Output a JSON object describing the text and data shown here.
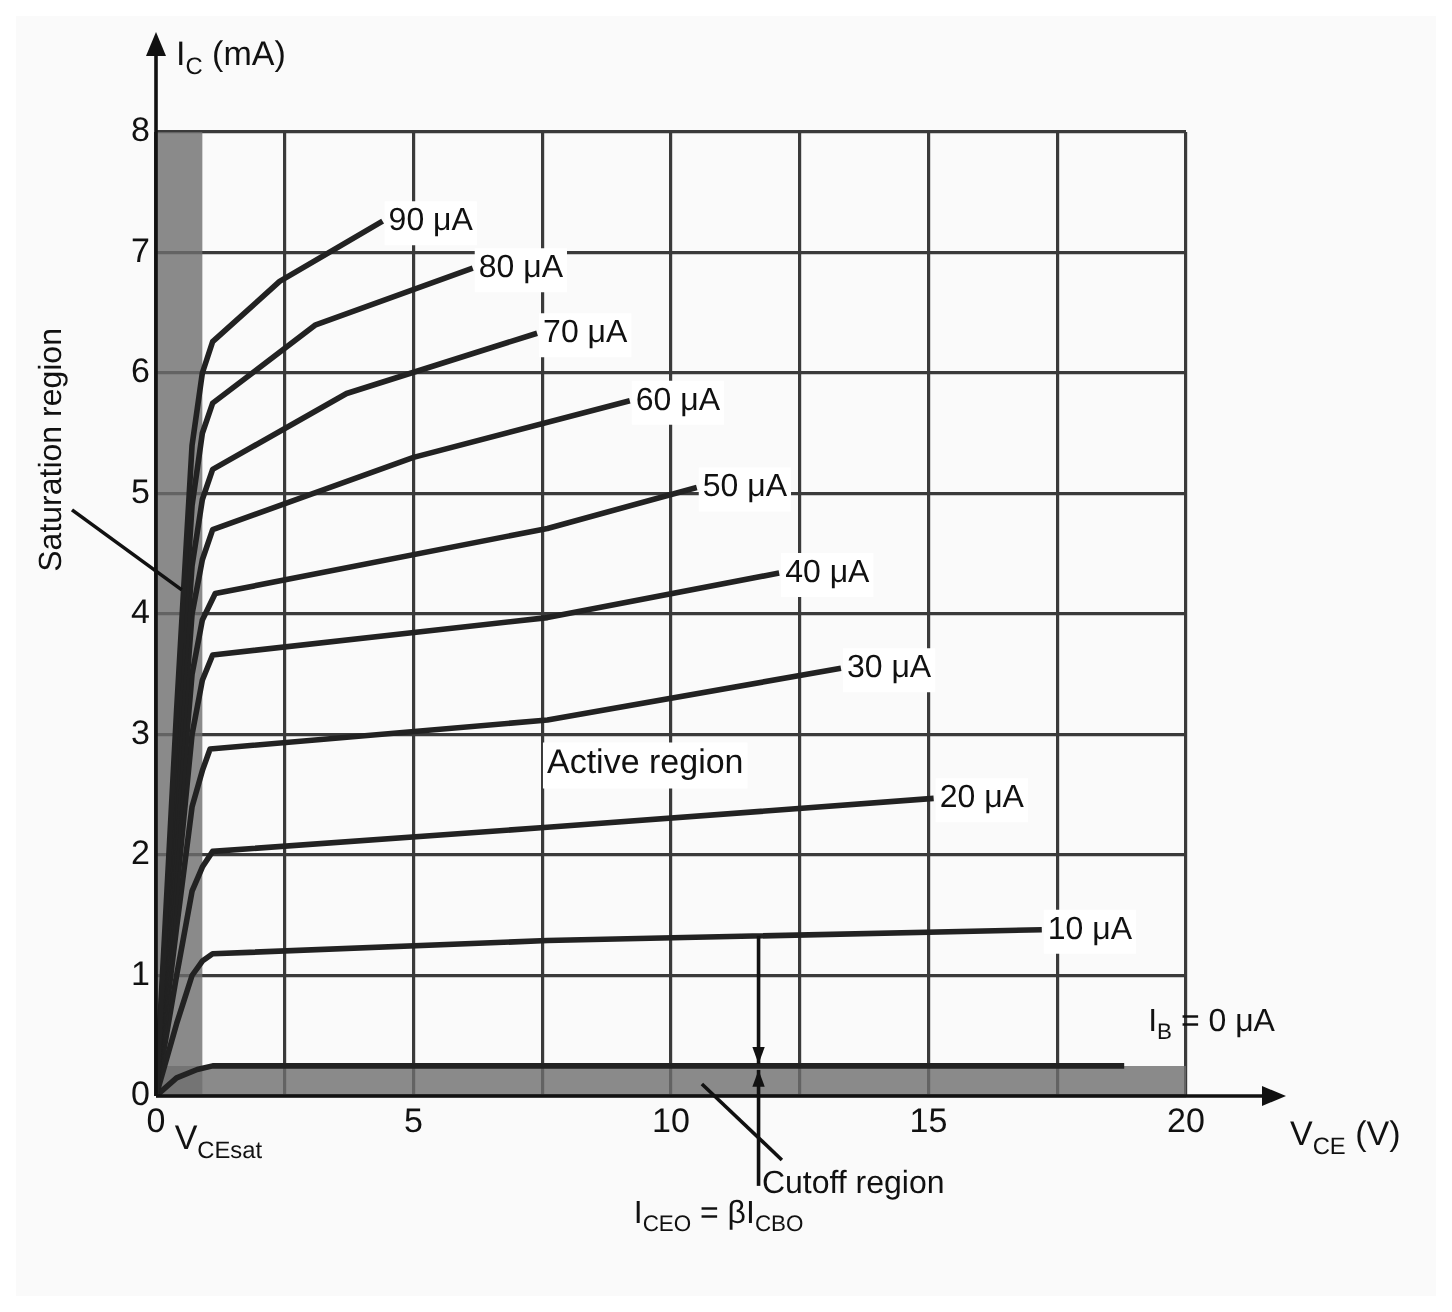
{
  "chart_data": {
    "type": "line",
    "xlabel": "V$_{CE}$ (V)",
    "ylabel": "I$_{C}$ (mA)",
    "xlim": [
      0,
      20
    ],
    "ylim": [
      0,
      8
    ],
    "xticks": [
      0,
      {
        "value": 2.5,
        "label": null
      },
      5,
      {
        "value": 7.5,
        "label": null
      },
      10,
      {
        "value": 12.5,
        "label": null
      },
      15,
      {
        "value": 17.5,
        "label": null
      },
      20
    ],
    "yticks": [
      0,
      1,
      2,
      3,
      4,
      5,
      6,
      7,
      8
    ],
    "grid": true,
    "legend": false,
    "marker": "none",
    "line_style": "solid",
    "bands": [
      {
        "axis": "x",
        "from": 0,
        "to": 0.9,
        "color": "#6e6e6e"
      },
      {
        "axis": "y",
        "from": 0,
        "to": 0.25,
        "color": "#6e6e6e"
      }
    ],
    "annotations": [
      {
        "text": "Saturation region",
        "x": 0.5,
        "y": 4.2
      },
      "Active region",
      "Cutoff region",
      {
        "text": "I$_{CEO}$ = βI$_{CBO}$",
        "x": 11.7,
        "y": 0.25
      },
      {
        "text": "V$_{CEsat}$",
        "x": 0.9,
        "y": 0
      }
    ],
    "series": [
      {
        "name": "90 μA",
        "color": "#222222",
        "x": [
          0,
          0.4,
          0.7,
          0.9,
          1.1,
          2.4,
          4.4
        ],
        "values": [
          0,
          3.2,
          5.4,
          6.0,
          6.26,
          6.76,
          7.26
        ]
      },
      {
        "name": "80 μA",
        "color": "#222222",
        "x": [
          0,
          0.4,
          0.7,
          0.9,
          1.1,
          3.1,
          6.15
        ],
        "values": [
          0,
          2.9,
          4.9,
          5.5,
          5.75,
          6.4,
          6.87
        ]
      },
      {
        "name": "70 μA",
        "color": "#222222",
        "x": [
          0,
          0.4,
          0.7,
          0.9,
          1.1,
          3.7,
          7.4
        ],
        "values": [
          0,
          2.6,
          4.4,
          4.95,
          5.2,
          5.83,
          6.33
        ]
      },
      {
        "name": "60 μA",
        "color": "#222222",
        "x": [
          0,
          0.4,
          0.7,
          0.9,
          1.1,
          5,
          9.2
        ],
        "values": [
          0,
          2.3,
          4.0,
          4.45,
          4.7,
          5.3,
          5.77
        ]
      },
      {
        "name": "50 μA",
        "color": "#222222",
        "x": [
          0,
          0.4,
          0.7,
          0.9,
          1.15,
          7.6,
          10.5
        ],
        "values": [
          0,
          2.0,
          3.5,
          3.95,
          4.17,
          4.71,
          5.05
        ]
      },
      {
        "name": "40 μA",
        "color": "#222222",
        "x": [
          0,
          0.4,
          0.7,
          0.9,
          1.1,
          7.6,
          12.1
        ],
        "values": [
          0,
          1.7,
          3.0,
          3.45,
          3.66,
          3.97,
          4.34
        ]
      },
      {
        "name": "30 μA",
        "color": "#222222",
        "x": [
          0,
          0.4,
          0.7,
          0.9,
          1.05,
          7.6,
          13.3
        ],
        "values": [
          0,
          1.4,
          2.4,
          2.7,
          2.88,
          3.12,
          3.55
        ]
      },
      {
        "name": "20 μA",
        "color": "#222222",
        "x": [
          0,
          0.4,
          0.7,
          0.9,
          1.1,
          7.6,
          15.1
        ],
        "values": [
          0,
          1.0,
          1.7,
          1.9,
          2.03,
          2.23,
          2.47
        ]
      },
      {
        "name": "10 μA",
        "color": "#222222",
        "x": [
          0,
          0.4,
          0.7,
          0.9,
          1.1,
          7.6,
          17.2
        ],
        "values": [
          0,
          0.6,
          1.0,
          1.12,
          1.18,
          1.29,
          1.38
        ]
      },
      {
        "name": "I$_{B}$ = 0 μA",
        "color": "#222222",
        "x": [
          0,
          0.4,
          0.8,
          1.1,
          18.8
        ],
        "values": [
          0,
          0.15,
          0.22,
          0.25,
          0.25
        ]
      }
    ]
  }
}
